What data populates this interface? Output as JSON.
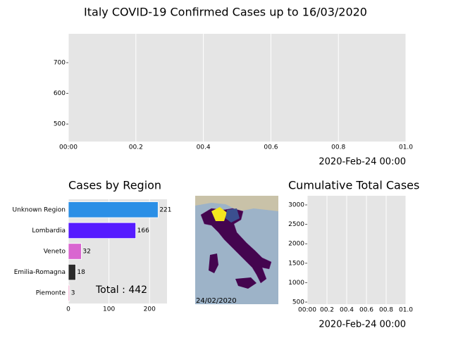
{
  "title": "Italy COVID-19 Confirmed Cases up to 16/03/2020",
  "chart_data": [
    {
      "type": "line",
      "xlabel": "2020-Feb-24 00:00",
      "xlim": [
        0,
        1
      ],
      "xticks": [
        {
          "value": 0,
          "label": "00:00"
        },
        {
          "value": 0.2,
          "label": "00.2"
        },
        {
          "value": 0.4,
          "label": "00.4"
        },
        {
          "value": 0.6,
          "label": "00.6"
        },
        {
          "value": 0.8,
          "label": "00.8"
        },
        {
          "value": 1,
          "label": "01.0"
        }
      ],
      "ylim": [
        443,
        794
      ],
      "yticks": [
        500,
        600,
        700
      ],
      "grid": "x"
    },
    {
      "type": "barh",
      "title": "Cases by Region",
      "categories": [
        "Unknown Region",
        "Lombardia",
        "Veneto",
        "Emilia-Romagna",
        "Piemonte"
      ],
      "values": [
        221,
        166,
        32,
        18,
        3
      ],
      "colors": [
        "#2b8fe6",
        "#561bff",
        "#d966d0",
        "#2b2b2b",
        "#f0a0c8"
      ],
      "xlim": [
        0,
        243
      ],
      "xticks": [
        0,
        100,
        200
      ],
      "grid": "x",
      "annotation": "Total : 442"
    },
    {
      "type": "line",
      "title": "Cumulative Total Cases",
      "xlabel": "2020-Feb-24 00:00",
      "xlim": [
        0,
        1
      ],
      "xticks": [
        {
          "value": 0,
          "label": "00:00"
        },
        {
          "value": 0.2,
          "label": "00.2"
        },
        {
          "value": 0.4,
          "label": "00.4"
        },
        {
          "value": 0.6,
          "label": "00.6"
        },
        {
          "value": 0.8,
          "label": "00.8"
        },
        {
          "value": 1,
          "label": "01.0"
        }
      ],
      "ylim": [
        446,
        3235
      ],
      "yticks": [
        500,
        1000,
        1500,
        2000,
        2500,
        3000
      ],
      "grid": "x"
    }
  ],
  "map": {
    "date_label": "24/02/2020"
  }
}
